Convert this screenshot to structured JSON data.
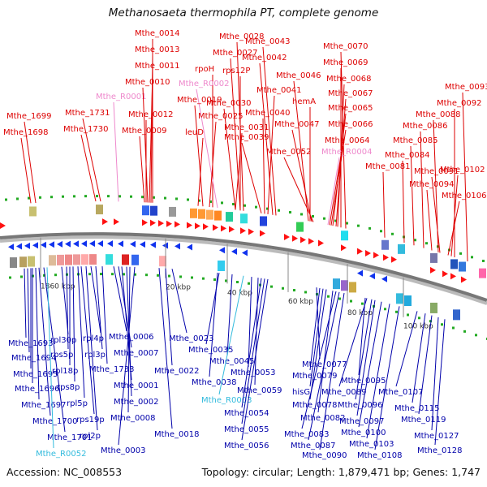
{
  "title": "Methanosaeta thermophila PT, complete genome",
  "footer": {
    "accession": "Accession: NC_008553",
    "summary": "Topology: circular; Length: 1,879,471 bp; Genes: 1,747"
  },
  "colors": {
    "forward_label": "#dd0000",
    "reverse_label": "#0000aa",
    "rna_forward_label": "#ee88cc",
    "rna_reverse_label": "#33bbdd",
    "forward_arrow": "#ff1111",
    "reverse_arrow": "#1133ee",
    "backbone": "#777777"
  },
  "scale_ticks": [
    "1860 kbp",
    "20 kbp",
    "40 kbp",
    "60 kbp",
    "80 kbp",
    "100 kbp"
  ],
  "top_labels": [
    "Mthe_1699",
    "Mthe_1698",
    "Mthe_1731",
    "Mthe_1730",
    "Mthe_R0001",
    "Mthe_0014",
    "Mthe_0013",
    "Mthe_0011",
    "Mthe_0010",
    "Mthe_0012",
    "Mthe_0009",
    "Mthe_0028",
    "Mthe_0027",
    "rpoH",
    "Mthe_R0002",
    "Mthe_0019",
    "Mthe_0025",
    "leuD",
    "rps12P",
    "Mthe_0030",
    "Mthe_0031",
    "Mthe_0043",
    "Mthe_0042",
    "Mthe_0041",
    "Mthe_0040",
    "Mthe_0039",
    "Mthe_0046",
    "hemA",
    "Mthe_0047",
    "Mthe_0052",
    "Mthe_0070",
    "Mthe_0069",
    "Mthe_0068",
    "Mthe_0067",
    "Mthe_0065",
    "Mthe_0066",
    "Mthe_0064",
    "Mthe_R0004",
    "Mthe_0093",
    "Mthe_0092",
    "Mthe_0088",
    "Mthe_0086",
    "Mthe_0085",
    "Mthe_0084",
    "Mthe_0081",
    "Mthe_0091",
    "Mthe_0094",
    "Mthe_0102",
    "Mthe_0106"
  ],
  "bottom_labels": [
    "Mthe_1693",
    "Mthe_1694",
    "Mthe_1695",
    "Mthe_1696",
    "Mthe_1697",
    "Mthe_1700",
    "Mthe_1701",
    "Mthe_R0052",
    "rpl30p",
    "rps5p",
    "rpl18p",
    "rps8p",
    "rpl5p",
    "rps19p",
    "rpl2p",
    "rpl4p",
    "rpl3p",
    "Mthe_1733",
    "Mthe_0006",
    "Mthe_0007",
    "Mthe_0001",
    "Mthe_0002",
    "Mthe_0008",
    "Mthe_0003",
    "Mthe_0023",
    "Mthe_0022",
    "Mthe_0018",
    "Mthe_0035",
    "Mthe_0045",
    "Mthe_0038",
    "Mthe_0053",
    "Mthe_R0003",
    "Mthe_0059",
    "Mthe_0054",
    "Mthe_0055",
    "Mthe_0056",
    "Mthe_0077",
    "Mthe_0079",
    "hisG",
    "Mthe_0078",
    "Mthe_0082",
    "Mthe_0083",
    "Mthe_0087",
    "Mthe_0090",
    "Mthe_0095",
    "Mthe_0089",
    "Mthe_0096",
    "Mthe_0097",
    "Mthe_0100",
    "Mthe_0103",
    "Mthe_0108",
    "Mthe_0107",
    "Mthe_0115",
    "Mthe_0119",
    "Mthe_0127",
    "Mthe_0128"
  ]
}
